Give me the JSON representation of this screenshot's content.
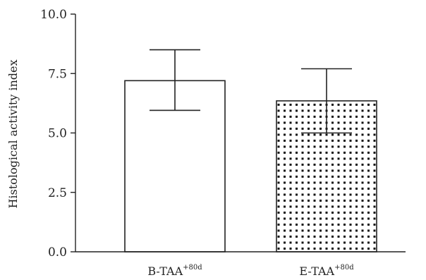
{
  "chart_data": {
    "type": "bar",
    "categories": [
      {
        "base": "B-TAA",
        "sup": "+80d"
      },
      {
        "base": "E-TAA",
        "sup": "+80d"
      }
    ],
    "values": [
      7.2,
      6.35
    ],
    "error_upper": [
      8.5,
      7.7
    ],
    "error_lower": [
      5.95,
      5.0
    ],
    "bar_patterns": [
      "plain",
      "dotted"
    ],
    "title": "",
    "xlabel": "",
    "ylabel": "Histological activity index",
    "ylim": [
      0,
      10
    ],
    "yticks": [
      "0.0",
      "2.5",
      "5.0",
      "7.5",
      "10.0"
    ],
    "grid": false,
    "colors": {
      "stroke": "#222222",
      "fill": "#ffffff",
      "dot": "#111111"
    }
  }
}
